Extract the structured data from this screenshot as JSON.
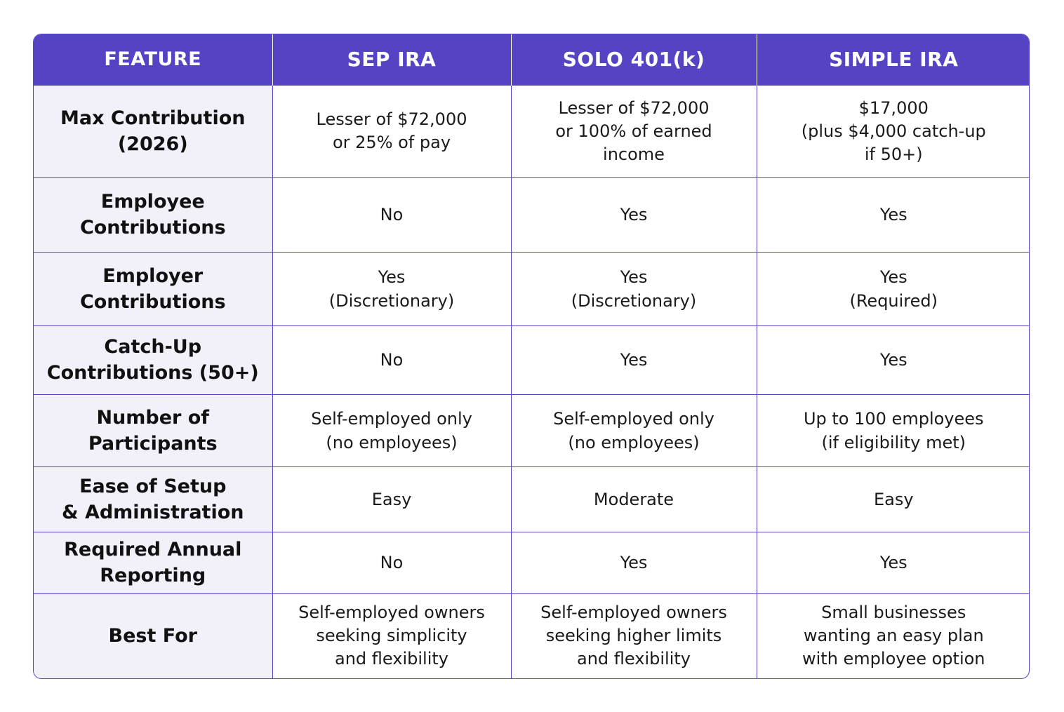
{
  "columns": [
    "FEATURE",
    "SEP IRA",
    "SOLO 401(k)",
    "SIMPLE IRA"
  ],
  "rows": [
    {
      "feature": "Max Contribution\n(2026)",
      "values": [
        "Lesser of $72,000\nor 25% of pay",
        "Lesser of $72,000\nor 100% of earned\nincome",
        "$17,000\n(plus $4,000 catch-up\nif 50+)"
      ]
    },
    {
      "feature": "Employee\nContributions",
      "values": [
        "No",
        "Yes",
        "Yes"
      ]
    },
    {
      "feature": "Employer\nContributions",
      "values": [
        "Yes\n(Discretionary)",
        "Yes\n(Discretionary)",
        "Yes\n(Required)"
      ]
    },
    {
      "feature": "Catch-Up\nContributions (50+)",
      "values": [
        "No",
        "Yes",
        "Yes"
      ]
    },
    {
      "feature": "Number of\nParticipants",
      "values": [
        "Self-employed only\n(no employees)",
        "Self-employed only\n(no employees)",
        "Up to 100 employees\n(if eligibility met)"
      ]
    },
    {
      "feature": "Ease of Setup\n& Administration",
      "values": [
        "Easy",
        "Moderate",
        "Easy"
      ]
    },
    {
      "feature": "Required Annual\nReporting",
      "values": [
        "No",
        "Yes",
        "Yes"
      ]
    },
    {
      "feature": "Best For",
      "values": [
        "Self-employed owners\nseeking simplicity\nand flexibility",
        "Self-employed owners\nseeking higher limits\nand flexibility",
        "Small businesses\nwanting an easy plan\nwith employee option"
      ]
    }
  ],
  "colors": {
    "header_bg": "#5444c4",
    "border": "#5445c6",
    "feature_bg": "#f2f1fa"
  }
}
